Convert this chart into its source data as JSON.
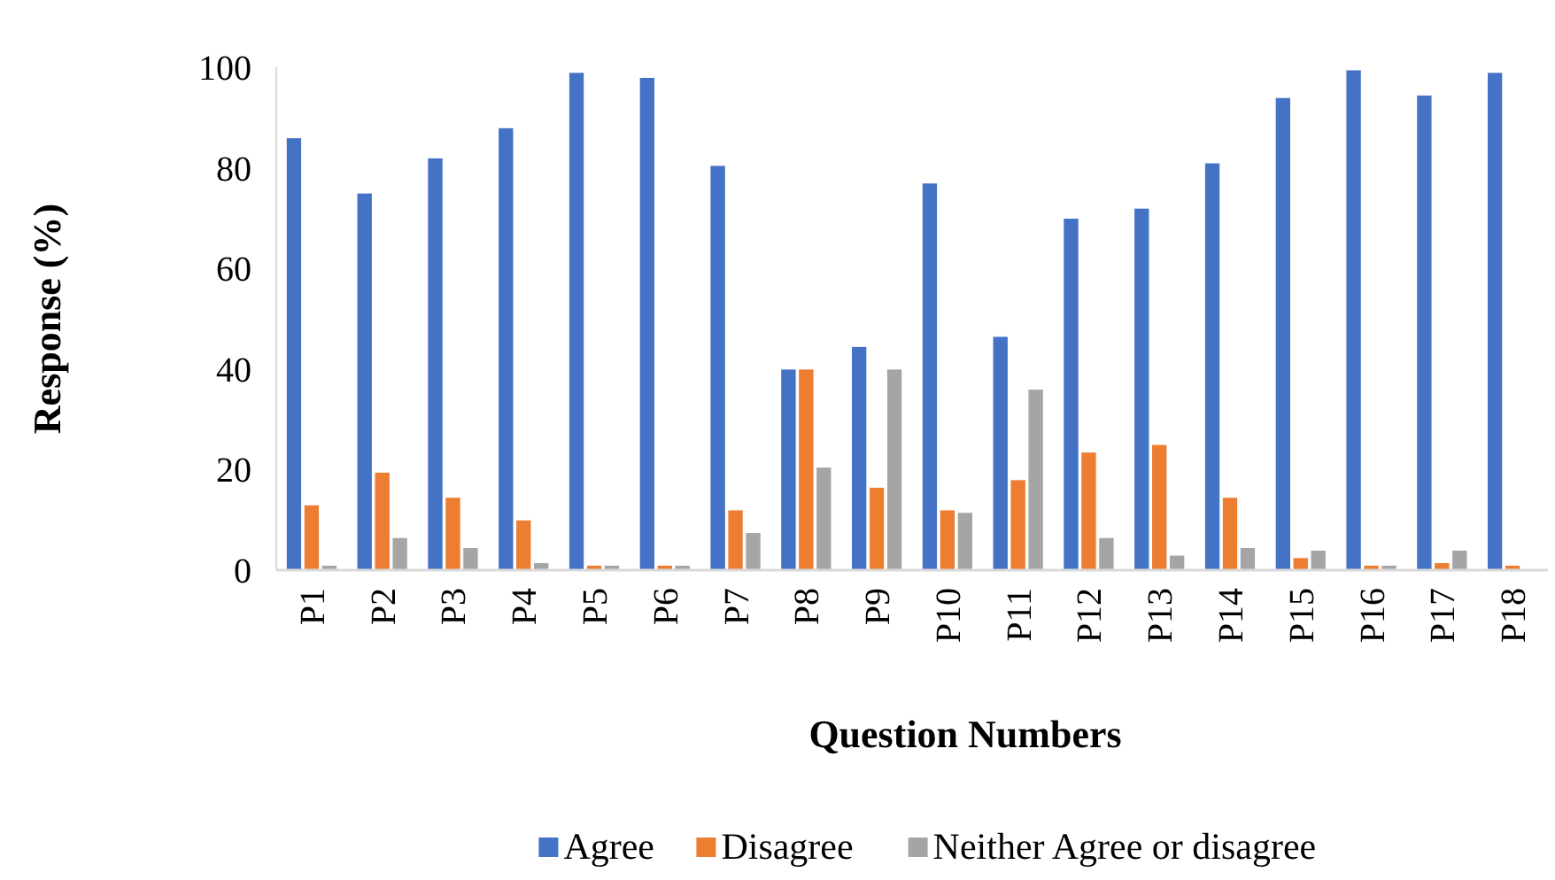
{
  "chart_data": {
    "type": "bar",
    "xlabel": "Question Numbers",
    "ylabel": "Response (%)",
    "categories": [
      "P1",
      "P2",
      "P3",
      "P4",
      "P5",
      "P6",
      "P7",
      "P8",
      "P9",
      "P10",
      "P11",
      "P12",
      "P13",
      "P14",
      "P15",
      "P16",
      "P17",
      "P18"
    ],
    "series": [
      {
        "name": "Agree",
        "color": "#4472c4",
        "values": [
          86,
          75,
          82,
          88,
          99,
          98,
          80.5,
          40,
          44.5,
          77,
          46.5,
          70,
          72,
          81,
          94,
          99.5,
          94.5,
          99
        ]
      },
      {
        "name": "Disagree",
        "color": "#ed7d31",
        "values": [
          13,
          19.5,
          14.5,
          10,
          1,
          1,
          12,
          40,
          16.5,
          12,
          18,
          23.5,
          25,
          14.5,
          2.5,
          1,
          1.5,
          1
        ]
      },
      {
        "name": "Neither Agree or disagree",
        "color": "#a5a5a5",
        "values": [
          1,
          6.5,
          4.5,
          1.5,
          1,
          1,
          7.5,
          20.5,
          40,
          11.5,
          36,
          6.5,
          3,
          4.5,
          4,
          1,
          4,
          null
        ]
      }
    ],
    "ylim": [
      0,
      100
    ],
    "yticks": [
      0,
      20,
      40,
      60,
      80,
      100
    ],
    "grid": false,
    "legend": "bottom"
  }
}
